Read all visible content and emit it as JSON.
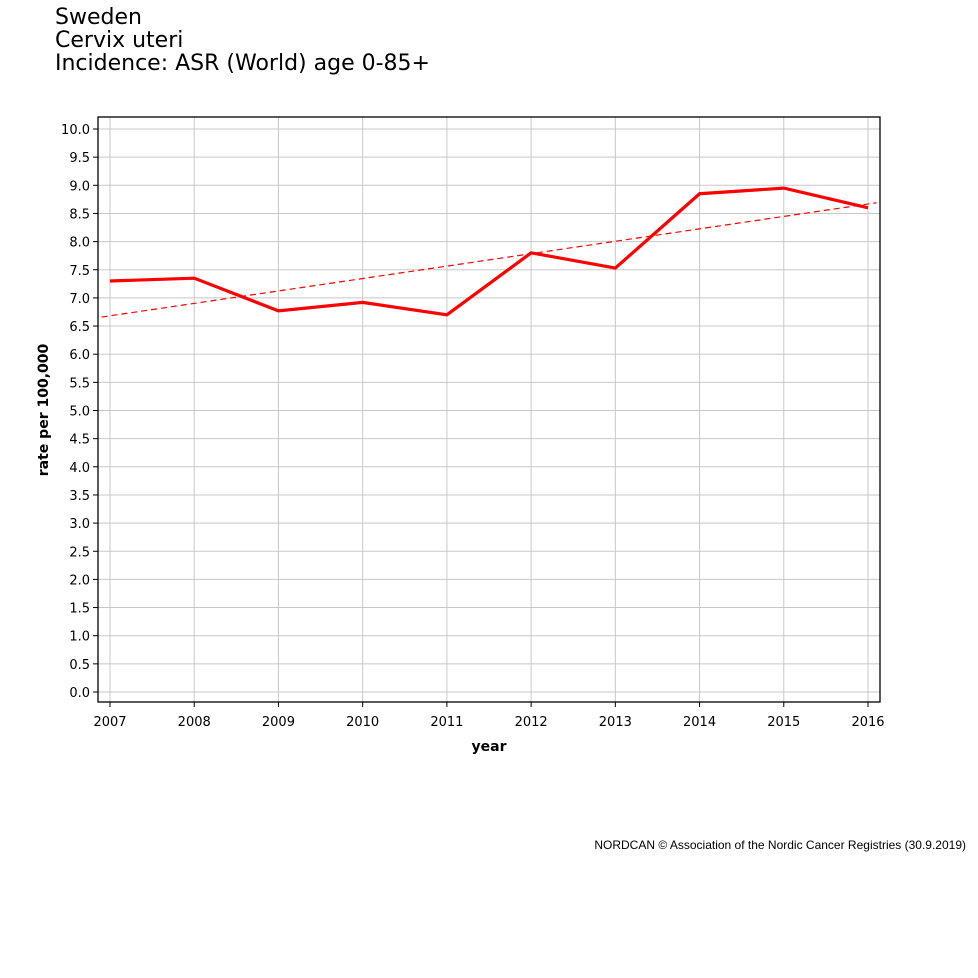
{
  "header": {
    "lines": [
      "Sweden",
      "Cervix uteri",
      "Incidence: ASR (World) age 0-85+"
    ]
  },
  "footer": {
    "credit": "NORDCAN © Association of the Nordic Cancer Registries (30.9.2019)"
  },
  "colors": {
    "series": "#ff0000",
    "grid": "#c8c8c8",
    "axis": "#000000",
    "background": "#ffffff"
  },
  "chart_data": {
    "type": "line",
    "title": "",
    "xlabel": "year",
    "ylabel": "rate per 100,000",
    "x": [
      2007,
      2008,
      2009,
      2010,
      2011,
      2012,
      2013,
      2014,
      2015,
      2016
    ],
    "xlim": [
      2007,
      2016
    ],
    "ylim": [
      0,
      10
    ],
    "y_ticks": [
      "0.0",
      "0.5",
      "1.0",
      "1.5",
      "2.0",
      "2.5",
      "3.0",
      "3.5",
      "4.0",
      "4.5",
      "5.0",
      "5.5",
      "6.0",
      "6.5",
      "7.0",
      "7.5",
      "8.0",
      "8.5",
      "9.0",
      "9.5",
      "10.0"
    ],
    "x_ticks": [
      "2007",
      "2008",
      "2009",
      "2010",
      "2011",
      "2012",
      "2013",
      "2014",
      "2015",
      "2016"
    ],
    "grid": true,
    "series": [
      {
        "style": "solid",
        "values": [
          7.3,
          7.35,
          6.77,
          6.92,
          6.7,
          7.8,
          7.53,
          8.85,
          8.95,
          8.6
        ]
      }
    ],
    "trend": {
      "style": "dashed",
      "start": [
        2006.9,
        6.66
      ],
      "end": [
        2016.1,
        8.69
      ]
    }
  }
}
